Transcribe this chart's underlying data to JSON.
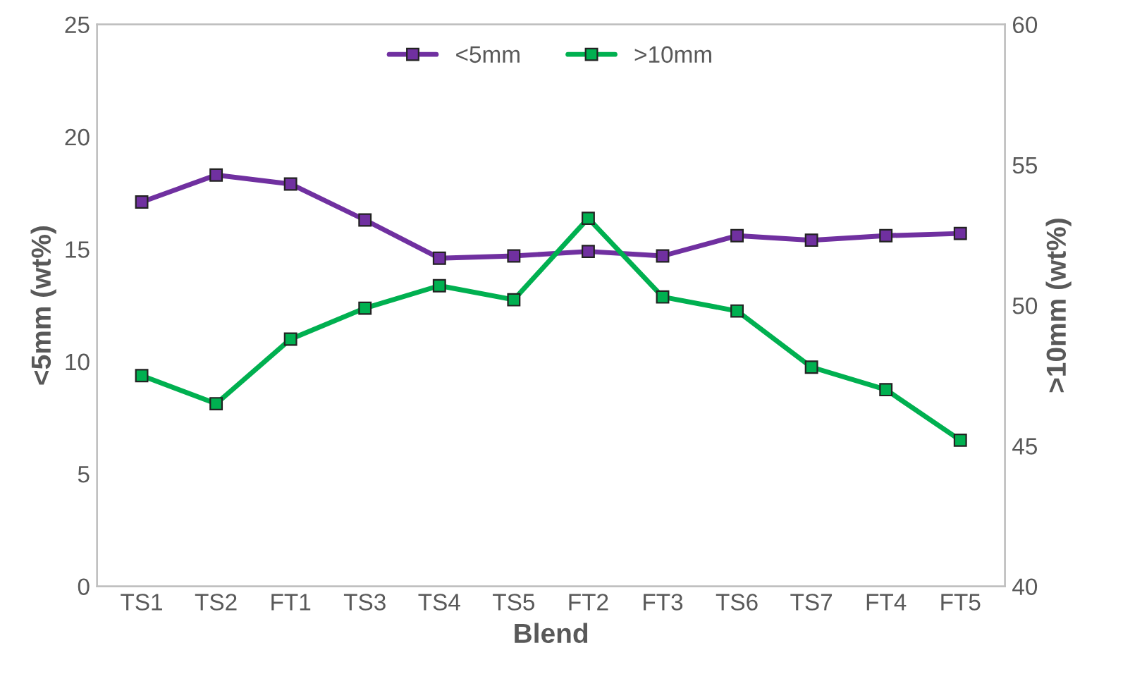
{
  "chart_data": {
    "type": "line",
    "xlabel": "Blend",
    "ylabel": "<5mm (wt%)",
    "y2label": ">10mm (wt%)",
    "categories": [
      "TS1",
      "TS2",
      "FT1",
      "TS3",
      "TS4",
      "TS5",
      "FT2",
      "FT3",
      "TS6",
      "TS7",
      "FT4",
      "FT5"
    ],
    "series": [
      {
        "name": "<5mm",
        "color": "#7030a0",
        "values": [
          17.1,
          18.3,
          17.9,
          16.3,
          14.6,
          14.7,
          14.9,
          14.7,
          15.6,
          15.4,
          15.6,
          15.7
        ]
      },
      {
        "name": ">10mm",
        "color": "#00b050",
        "axis": "y2",
        "values": [
          47.5,
          46.5,
          48.8,
          49.9,
          50.7,
          50.2,
          53.1,
          50.3,
          49.8,
          47.8,
          47.0,
          45.2
        ]
      }
    ],
    "ylim": [
      0,
      25
    ],
    "yticks": [
      0,
      5,
      10,
      15,
      20,
      25
    ],
    "y2lim": [
      40,
      60
    ],
    "y2ticks": [
      40,
      45,
      50,
      55,
      60
    ],
    "marker": "square",
    "line_style": "solid",
    "legend": "top",
    "grid": false
  }
}
